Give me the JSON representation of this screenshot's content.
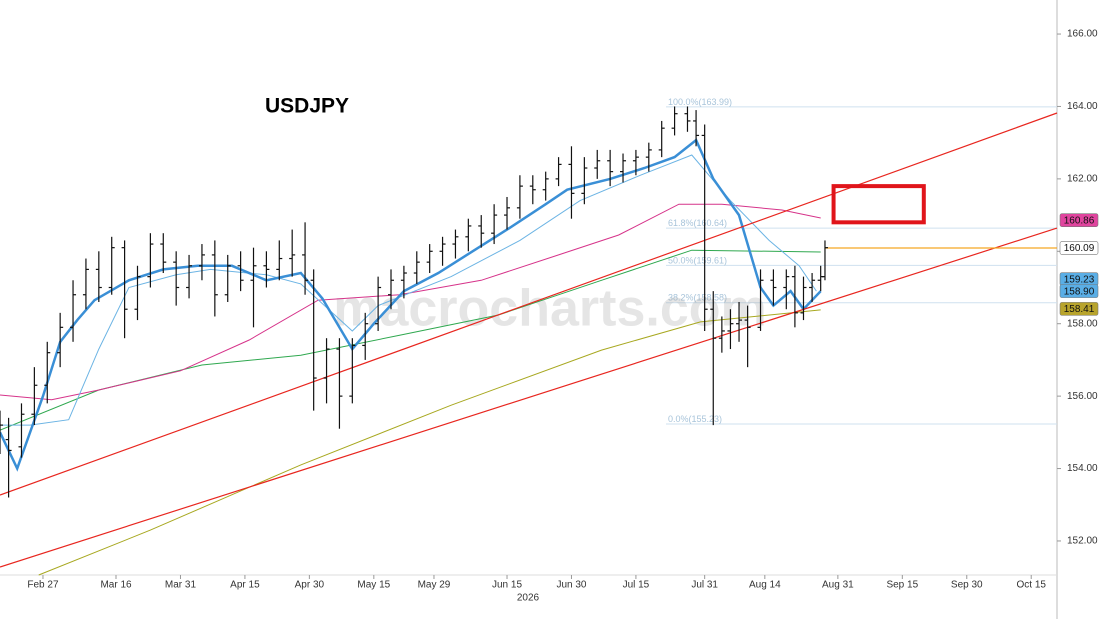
{
  "chart_data": {
    "type": "ohlc",
    "title": "USDJPY",
    "watermark": "macrocharts.com",
    "xlabel": "2026",
    "xlim": [
      48,
      294
    ],
    "ylim": [
      151.06,
      166.94
    ],
    "xticks": [
      {
        "value": 58,
        "label": "Feb 27"
      },
      {
        "value": 75,
        "label": "Mar 16"
      },
      {
        "value": 90,
        "label": "Mar 31"
      },
      {
        "value": 105,
        "label": "Apr 15"
      },
      {
        "value": 120,
        "label": "Apr 30"
      },
      {
        "value": 135,
        "label": "May 15"
      },
      {
        "value": 149,
        "label": "May 29"
      },
      {
        "value": 166,
        "label": "Jun 15"
      },
      {
        "value": 181,
        "label": "Jun 30"
      },
      {
        "value": 196,
        "label": "Jul 15"
      },
      {
        "value": 212,
        "label": "Jul 31"
      },
      {
        "value": 226,
        "label": "Aug 14"
      },
      {
        "value": 243,
        "label": "Aug 31"
      },
      {
        "value": 258,
        "label": "Sep 15"
      },
      {
        "value": 273,
        "label": "Sep 30"
      },
      {
        "value": 288,
        "label": "Oct 15"
      }
    ],
    "yticks": [
      {
        "value": 152,
        "label": "152.00"
      },
      {
        "value": 154,
        "label": "154.00"
      },
      {
        "value": 156,
        "label": "156.00"
      },
      {
        "value": 158,
        "label": "158.00"
      },
      {
        "value": 160,
        "label": "160.00"
      },
      {
        "value": 162,
        "label": "162.00"
      },
      {
        "value": 164,
        "label": "164.00"
      },
      {
        "value": 166,
        "label": "166.00"
      }
    ],
    "bars": {
      "color": "#111111",
      "x": [
        48,
        50,
        53,
        56,
        59,
        62,
        65,
        68,
        71,
        74,
        77,
        80,
        83,
        86,
        89,
        92,
        95,
        98,
        101,
        104,
        107,
        110,
        113,
        116,
        119,
        121,
        124,
        127,
        130,
        133,
        136,
        139,
        142,
        145,
        148,
        151,
        154,
        157,
        160,
        163,
        166,
        169,
        172,
        175,
        178,
        181,
        184,
        187,
        190,
        193,
        196,
        199,
        202,
        205,
        208,
        210,
        212,
        214,
        216,
        218,
        220,
        222,
        225,
        228,
        231,
        233,
        235,
        237,
        239,
        240
      ],
      "open": [
        155.0,
        154.8,
        154.6,
        155.5,
        156.3,
        157.2,
        157.9,
        158.8,
        159.5,
        159.0,
        160.1,
        158.4,
        159.3,
        160.2,
        159.7,
        159.0,
        159.6,
        159.9,
        158.8,
        159.6,
        159.2,
        159.6,
        159.5,
        159.8,
        159.9,
        159.2,
        156.5,
        157.3,
        156.0,
        157.4,
        158.0,
        158.8,
        159.2,
        159.4,
        159.7,
        160.0,
        160.2,
        160.4,
        160.7,
        160.5,
        161.0,
        161.2,
        161.8,
        161.7,
        162.0,
        162.4,
        161.6,
        162.3,
        162.5,
        162.2,
        162.5,
        162.6,
        162.8,
        163.4,
        163.8,
        163.6,
        163.2,
        158.4,
        157.6,
        157.8,
        158.0,
        158.1,
        157.9,
        159.2,
        159.0,
        159.3,
        158.3,
        159.0,
        159.2,
        159.3
      ],
      "high": [
        155.6,
        155.4,
        155.8,
        156.8,
        157.5,
        158.3,
        159.2,
        159.8,
        160.0,
        160.4,
        160.3,
        159.6,
        160.5,
        160.5,
        160.0,
        159.9,
        160.2,
        160.3,
        159.9,
        160.0,
        160.1,
        160.0,
        160.3,
        160.6,
        160.8,
        159.5,
        157.6,
        157.6,
        157.6,
        158.3,
        159.3,
        159.5,
        159.6,
        160.0,
        160.2,
        160.4,
        160.6,
        160.9,
        161.0,
        161.3,
        161.5,
        162.1,
        162.1,
        162.2,
        162.6,
        162.9,
        162.6,
        162.8,
        162.8,
        162.7,
        162.8,
        163.0,
        163.6,
        164.0,
        164.0,
        163.9,
        163.5,
        158.9,
        158.2,
        158.4,
        158.6,
        158.5,
        159.5,
        159.5,
        159.5,
        159.6,
        159.3,
        159.4,
        159.6,
        160.3
      ],
      "low": [
        154.4,
        153.2,
        154.3,
        155.2,
        155.8,
        156.8,
        157.5,
        158.4,
        158.6,
        158.8,
        157.6,
        158.1,
        159.0,
        159.4,
        158.5,
        158.7,
        159.2,
        158.2,
        158.6,
        158.9,
        157.9,
        159.0,
        159.2,
        159.3,
        158.8,
        155.6,
        155.8,
        155.1,
        155.8,
        157.0,
        157.8,
        158.4,
        158.7,
        159.1,
        159.4,
        159.6,
        159.8,
        160.0,
        160.1,
        160.2,
        160.6,
        160.9,
        161.3,
        161.4,
        161.8,
        160.9,
        161.3,
        162.0,
        161.8,
        161.9,
        162.1,
        162.2,
        162.6,
        163.2,
        163.3,
        162.9,
        157.8,
        155.2,
        157.2,
        157.3,
        157.5,
        156.8,
        157.8,
        158.5,
        158.4,
        157.9,
        158.1,
        158.6,
        158.9,
        159.2
      ],
      "close": [
        155.2,
        154.5,
        155.5,
        156.3,
        157.2,
        157.9,
        158.8,
        159.5,
        159.0,
        160.1,
        158.4,
        159.3,
        160.2,
        159.7,
        159.0,
        159.6,
        159.9,
        158.8,
        159.6,
        159.2,
        159.6,
        159.5,
        159.8,
        159.9,
        159.2,
        156.5,
        157.3,
        156.0,
        157.4,
        158.0,
        159.0,
        159.2,
        159.4,
        159.7,
        160.0,
        160.2,
        160.4,
        160.7,
        160.5,
        161.0,
        161.2,
        161.8,
        161.7,
        162.0,
        162.4,
        161.6,
        162.3,
        162.5,
        162.2,
        162.5,
        162.6,
        162.8,
        163.4,
        163.8,
        163.6,
        163.2,
        158.4,
        157.6,
        157.8,
        158.0,
        158.1,
        157.9,
        159.2,
        159.0,
        159.3,
        158.3,
        159.0,
        159.2,
        159.3,
        160.1
      ]
    },
    "series": [
      {
        "color": "#a8a820",
        "width": 1,
        "x": [
          57,
          83,
          118,
          153,
          188,
          211,
          239
        ],
        "values": [
          151.06,
          152.3,
          154.1,
          155.75,
          157.27,
          158.05,
          158.38
        ]
      },
      {
        "color": "#2fa84f",
        "width": 1,
        "x": [
          48,
          71,
          95,
          118,
          141,
          164,
          188,
          209,
          239
        ],
        "values": [
          155.06,
          156.17,
          156.86,
          157.13,
          157.68,
          158.24,
          159.2,
          160.03,
          159.98
        ]
      },
      {
        "color": "#d6338a",
        "width": 1,
        "x": [
          48,
          60,
          71,
          90,
          106,
          122,
          141,
          160,
          178,
          192,
          206,
          216,
          230,
          239
        ],
        "values": [
          156.03,
          155.9,
          156.17,
          156.7,
          157.55,
          158.65,
          158.8,
          159.2,
          159.9,
          160.45,
          161.3,
          161.3,
          161.14,
          160.92
        ]
      },
      {
        "color": "#6cb4e4",
        "width": 1,
        "x": [
          48,
          55,
          64,
          71,
          78,
          89,
          97,
          110,
          118,
          130,
          136,
          153,
          169,
          183,
          197,
          209,
          218,
          227,
          234,
          238
        ],
        "values": [
          155.2,
          155.2,
          155.35,
          157.3,
          159.0,
          159.35,
          159.5,
          159.35,
          159.1,
          157.8,
          158.5,
          159.3,
          160.3,
          161.4,
          162.1,
          162.66,
          161.4,
          160.3,
          159.6,
          158.9
        ]
      },
      {
        "color": "#3a8fd6",
        "width": 2.5,
        "x": [
          48,
          52,
          58,
          62,
          66,
          70,
          78,
          86,
          94,
          102,
          110,
          118,
          123,
          130,
          135,
          142,
          150,
          158,
          166,
          175,
          180,
          190,
          198,
          205,
          210,
          214,
          220,
          225,
          228,
          232,
          235,
          239
        ],
        "values": [
          155.0,
          154.0,
          156.0,
          157.5,
          158.1,
          158.65,
          159.2,
          159.5,
          159.6,
          159.6,
          159.2,
          159.4,
          158.7,
          157.3,
          158.0,
          158.9,
          159.4,
          160.0,
          160.6,
          161.3,
          161.7,
          162.0,
          162.3,
          162.6,
          163.07,
          162.0,
          161.0,
          159.0,
          158.5,
          158.9,
          158.4,
          158.9
        ]
      }
    ],
    "trendlines": [
      {
        "color": "#e8261f",
        "x": [
          48,
          294
        ],
        "values": [
          153.27,
          163.82
        ]
      },
      {
        "color": "#e8261f",
        "x": [
          48,
          294
        ],
        "values": [
          151.28,
          160.64
        ]
      },
      {
        "color": "#f5a623",
        "x": [
          240,
          294
        ],
        "values": [
          160.09,
          160.09
        ]
      }
    ],
    "fib": {
      "start": 203,
      "color": "#cfe1ef",
      "values": [
        163.99,
        160.64,
        159.61,
        158.58,
        155.23
      ],
      "labels": [
        "100.0%(163.99)",
        "61.8%(160.64)",
        "50.0%(159.61)",
        "38.2%(158.58)",
        "0.0%(155.23)"
      ]
    },
    "box": {
      "color": "#e0151b",
      "x": [
        242,
        263
      ],
      "y": [
        160.8,
        161.8
      ]
    },
    "badges": {
      "values": [
        160.86,
        160.09,
        159.23,
        158.9,
        158.41
      ],
      "value_labels": [
        "160.86",
        "160.09",
        "159.23",
        "158.90",
        "158.41"
      ],
      "colors": [
        "#e0449e",
        "#ffffff",
        "#5aaee6",
        "#5aaee6",
        "#b8a42c"
      ]
    }
  }
}
